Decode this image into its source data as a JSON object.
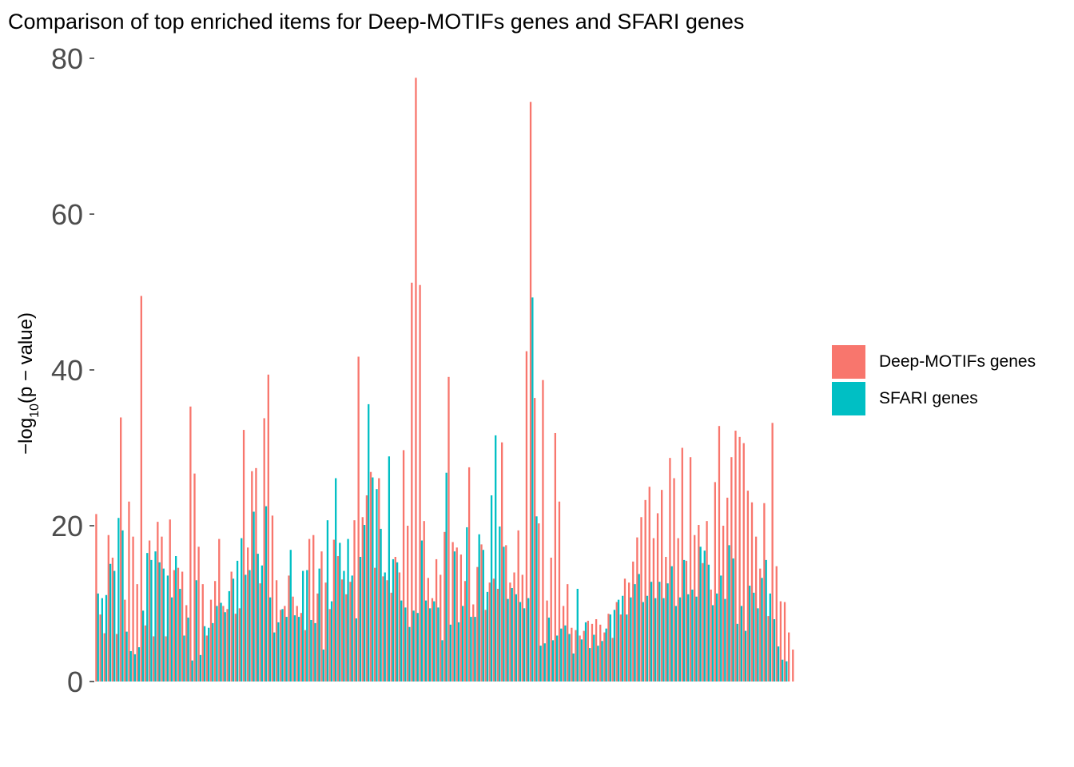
{
  "title": "Comparison of top enriched items for Deep-MOTIFs genes and SFARI genes",
  "legend": [
    {
      "label": "Deep-MOTIFs genes",
      "color": "#F8766D"
    },
    {
      "label": "SFARI genes",
      "color": "#00BFC4"
    }
  ],
  "chart_data": {
    "type": "bar",
    "title": "Comparison of top enriched items for Deep-MOTIFs genes and SFARI genes",
    "xlabel": "",
    "ylabel": "−log10(p − value)",
    "ylim": [
      0,
      80
    ],
    "yticks": [
      0,
      20,
      40,
      60,
      80
    ],
    "grid": false,
    "legend_position": "right",
    "x_tick_labels": "none",
    "series": [
      {
        "name": "Deep-MOTIFs genes",
        "color": "#F8766D",
        "values": [
          21.5,
          8.6,
          6.2,
          18.8,
          15.9,
          6.1,
          33.9,
          10.5,
          23.1,
          18.6,
          12.5,
          49.5,
          7.2,
          18.1,
          5.8,
          20.5,
          18.6,
          5.8,
          20.8,
          14.3,
          14.6,
          14.1,
          9.8,
          35.3,
          26.7,
          17.3,
          12.5,
          5.9,
          10.5,
          12.9,
          18.3,
          9.7,
          9.3,
          14.1,
          8.7,
          9.4,
          32.3,
          17.2,
          27,
          27.4,
          12.6,
          33.8,
          39.4,
          21.3,
          13,
          9.2,
          9.7,
          13.6,
          10.9,
          9.7,
          8.8,
          6.6,
          18.3,
          18.8,
          11.3,
          16.7,
          12.7,
          9.3,
          18.2,
          16.1,
          13.1,
          11.2,
          12.8,
          20.7,
          41.7,
          21.1,
          23.9,
          26.9,
          14.6,
          26.1,
          13.5,
          13,
          11.4,
          16,
          14,
          29.7,
          20,
          51.2,
          77.5,
          50.9,
          20.6,
          13.3,
          10.7,
          15.7,
          13.7,
          19.2,
          39.1,
          17.9,
          17.2,
          16.3,
          12.9,
          27.5,
          9.9,
          14.7,
          17.6,
          9.2,
          12.7,
          13.2,
          11.9,
          30.7,
          17.5,
          12.7,
          14,
          19.4,
          13.7,
          42.4,
          74.4,
          36.4,
          20.3,
          38.7,
          10.4,
          15.9,
          31.9,
          23.1,
          9.7,
          12.5,
          6.9,
          6.6,
          5.9,
          6.5,
          7.8,
          7.4,
          8,
          7.3,
          6.3,
          8.7,
          5.6,
          10.2,
          8.6,
          13.2,
          12.7,
          15.4,
          18.5,
          21.1,
          23.3,
          25,
          18.4,
          21.6,
          24.6,
          16,
          28.7,
          26.1,
          18.4,
          30,
          15.5,
          28.8,
          18.8,
          20.1,
          15.2,
          20.6,
          11.8,
          25.6,
          32.8,
          20,
          23.6,
          28.8,
          32.2,
          31.4,
          30.6,
          24.5,
          23,
          18.6,
          14.5,
          22.9,
          8.4,
          33.2,
          14.8,
          10.3,
          10.2,
          6.3,
          4.1
        ]
      },
      {
        "name": "SFARI genes",
        "color": "#00BFC4",
        "values": [
          11.3,
          10.7,
          11.1,
          15.1,
          14.2,
          21,
          19.4,
          6.4,
          3.9,
          3.5,
          4.4,
          9.1,
          16.5,
          15.6,
          16.7,
          15.3,
          14.5,
          13.6,
          10.8,
          16.1,
          11.9,
          5.9,
          8.2,
          2.7,
          13,
          3.4,
          7.1,
          6.9,
          7.5,
          9.7,
          10.1,
          8.9,
          11.6,
          13.2,
          15.5,
          18.4,
          13.7,
          14.3,
          21.8,
          16.4,
          14.9,
          22.5,
          10.8,
          6.3,
          7.6,
          9.3,
          8.3,
          16.9,
          8.5,
          8.3,
          14.2,
          14.3,
          7.9,
          7.5,
          14.5,
          4.1,
          20.7,
          10.3,
          26.1,
          17.8,
          14.2,
          18.3,
          13.6,
          8.1,
          16,
          20.1,
          35.6,
          26.2,
          24.7,
          19.6,
          14,
          28.9,
          15.7,
          15.3,
          10.4,
          9.5,
          7,
          9.1,
          8.8,
          18.1,
          10.4,
          9.4,
          10.3,
          9.5,
          5.3,
          26.8,
          7.3,
          16.7,
          7.6,
          9.7,
          19.8,
          8.3,
          8.3,
          18.9,
          16.9,
          11.5,
          23.9,
          31.6,
          19.9,
          17.3,
          10.6,
          12,
          11.2,
          10.2,
          9.4,
          10.7,
          49.3,
          21.2,
          4.6,
          4.9,
          8.2,
          5.3,
          5.9,
          6.8,
          7.2,
          6.1,
          3.6,
          11.9,
          5.4,
          7.6,
          4.3,
          6,
          4.6,
          5.2,
          6.8,
          8.6,
          9.2,
          10.5,
          11,
          8.6,
          10.8,
          12.5,
          13.8,
          10.2,
          11,
          12.8,
          10.7,
          12.8,
          10.7,
          12.6,
          14.8,
          9.7,
          10.8,
          15.6,
          11.2,
          11.8,
          10.9,
          17.3,
          16.8,
          15,
          9.8,
          11.3,
          13.6,
          10.6,
          17.5,
          15.8,
          7.4,
          9.7,
          6.5,
          12.3,
          11.4,
          9.4,
          13.3,
          15.6,
          11.3,
          8,
          4.5,
          2.8,
          2.6
        ]
      }
    ]
  }
}
